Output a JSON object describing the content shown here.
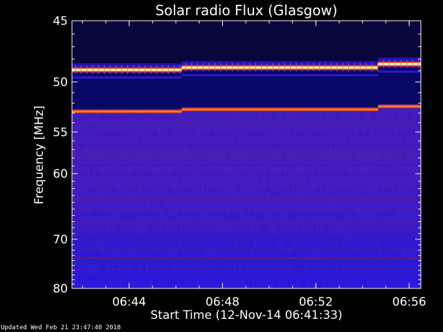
{
  "chart_data": {
    "type": "heatmap",
    "title": "Solar radio Flux (Glasgow)",
    "xlabel": "Start Time (12-Nov-14 06:41:33)",
    "ylabel": "Frequency [MHz]",
    "xlim": [
      "06:41:33",
      "06:56:30"
    ],
    "ylim": [
      45,
      80
    ],
    "x_ticks": [
      "06:44",
      "06:48",
      "06:52",
      "06:56"
    ],
    "y_ticks": [
      45,
      50,
      55,
      60,
      70,
      80
    ],
    "colormap": "hot-on-blue",
    "bright_bands": [
      {
        "segment": [
          "06:41:33",
          "06:46:15"
        ],
        "freq": [
          48.9,
          52.8
        ]
      },
      {
        "segment": [
          "06:46:15",
          "06:54:40"
        ],
        "freq": [
          48.7,
          52.6
        ]
      },
      {
        "segment": [
          "06:54:40",
          "06:56:30"
        ],
        "freq": [
          48.4,
          52.3
        ]
      }
    ]
  },
  "footer": "Updated Wed Feb 21 23:47:40 2018",
  "colors": {
    "background": "#000000",
    "low": "#1a10c8",
    "mid": "#5b1fa8",
    "high": "#ff4a10",
    "peak": "#ffffe0"
  }
}
